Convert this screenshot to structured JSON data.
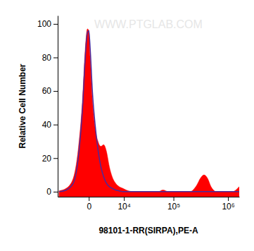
{
  "chart_data": {
    "type": "area",
    "x_label": "98101-1-RR(SIRPA),PE-A",
    "y_label": "Relative Cell Number",
    "annotations": [
      "WWW.PTGLAB.COM"
    ],
    "log": "x",
    "x": [
      -7400,
      -4700,
      -2740,
      -1670,
      -900,
      -480,
      -180,
      0,
      180,
      480,
      900,
      1400,
      1950,
      2570,
      3270,
      4060,
      4940,
      6200,
      7660,
      9360,
      11300,
      16200,
      51000,
      63400,
      81000,
      200700,
      270600,
      314000,
      364000,
      423000,
      491000,
      621000,
      1193000,
      1600000
    ],
    "series": [
      {
        "type": "area",
        "color": "#ff0000",
        "values": [
          0.5,
          2,
          8,
          25,
          55,
          85,
          97,
          96,
          80,
          55,
          38,
          30,
          27,
          28,
          24,
          15,
          9,
          5,
          3,
          2,
          1,
          0,
          0,
          1,
          0,
          0,
          4,
          8,
          10,
          8,
          3,
          0,
          0,
          3
        ]
      },
      {
        "type": "line",
        "color": "#4b2a9c",
        "values": [
          0,
          1,
          5,
          20,
          50,
          80,
          95,
          96,
          85,
          60,
          40,
          25,
          15,
          9,
          5,
          3,
          2,
          1,
          0.5,
          0,
          0,
          0,
          0,
          0,
          0,
          0,
          0,
          0,
          0,
          0,
          0,
          0,
          0,
          0
        ]
      }
    ],
    "xlim": [
      -8000,
      1600000
    ],
    "xticks": [
      0,
      {
        "value": 10000,
        "label": "10⁴"
      },
      {
        "value": 100000,
        "label": "10⁵"
      },
      {
        "value": 1000000,
        "label": "10⁶"
      }
    ],
    "ylim": [
      -3,
      105
    ],
    "yticks": [
      0,
      20,
      40,
      60,
      80,
      100
    ],
    "grid": false
  }
}
